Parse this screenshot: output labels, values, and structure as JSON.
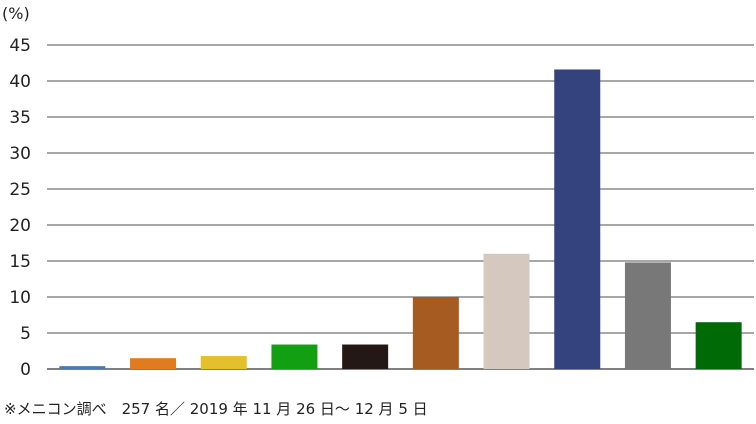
{
  "chart_data": {
    "type": "bar",
    "ylabel": "(%)",
    "ylim": [
      0,
      45
    ],
    "yticks": [
      0,
      5,
      10,
      15,
      20,
      25,
      30,
      35,
      40,
      45
    ],
    "grid": true,
    "legend": "none",
    "values": [
      0.4,
      1.5,
      1.8,
      3.4,
      3.4,
      10.0,
      16.0,
      41.6,
      14.8,
      6.5
    ],
    "colors": [
      "#4a7ab0",
      "#e07b20",
      "#e3c02c",
      "#12a012",
      "#231816",
      "#a65c20",
      "#d5c9bf",
      "#34437e",
      "#787878",
      "#006a07"
    ]
  },
  "footnote": "※メニコン調べ　257 名／ 2019 年 11 月 26 日～ 12 月 5 日"
}
